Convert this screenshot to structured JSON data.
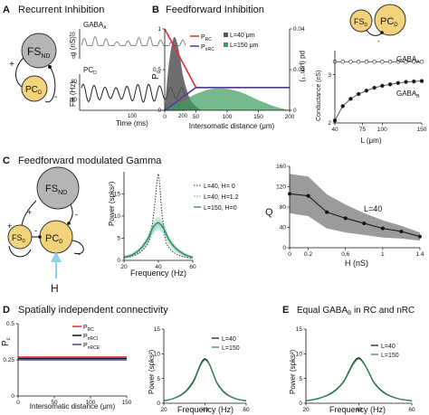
{
  "panel_a": {
    "letter": "A",
    "title": "Recurrent Inhibition",
    "fs_main": "FS",
    "fs_sub": "ND",
    "pc_main": "PC",
    "pc_sub": "D",
    "plus": "+",
    "minus": "-",
    "ylabel_top_prefix": "g (nS)",
    "trace_top_main": "GABA",
    "trace_top_sub": "A",
    "trace_bottom_main": "PC",
    "trace_bottom_sub": "D",
    "ylabel_bottom": "FR (Hz)",
    "y_top_ticks": [
      "20",
      "0"
    ],
    "y_bottom_ticks": [
      "80",
      "40"
    ],
    "x_ticks": [
      "100",
      "200"
    ],
    "xlabel": "Time (ms)"
  },
  "panel_b": {
    "letter": "B",
    "title": "Feedforward Inhibition",
    "fs_main": "FS",
    "fs_sub": "D",
    "pc_main": "PC",
    "pc_sub": "D",
    "ylabel_left": "P",
    "ylabel_left_sub": "c",
    "ylabel_right": "pd (μm⁻¹)",
    "y_left_ticks": [
      "1",
      "0.5",
      "0"
    ],
    "y_right_ticks": [
      "0.04",
      "0.02",
      "0"
    ],
    "x_ticks": [
      "0",
      "50",
      "100",
      "150",
      "200"
    ],
    "xlabel": "Intersomatic distance (μm)",
    "legend_prc": "P",
    "legend_prc_sub": "RC",
    "legend_pnrc": "P",
    "legend_pnrc_sub": "nRC",
    "legend_l40": "L=40 μm",
    "legend_l150": "L=150 μm",
    "colors": {
      "prc": "#e0303a",
      "pnrc": "#4b3fa0",
      "l40": "#555555",
      "l150": "#3c9a5a"
    }
  },
  "panel_b_right": {
    "ylabel": "Conductance (nS)",
    "y_ticks": [
      "3",
      "2"
    ],
    "x_ticks": [
      "40",
      "75",
      "100",
      "150"
    ],
    "xlabel": "L (μm)",
    "gabaa_label": "GABA",
    "gabaa_sub": "A",
    "gabab_label": "GABA",
    "gabab_sub": "B"
  },
  "panel_c": {
    "letter": "C",
    "title": "Feedforward modulated Gamma",
    "fs_nd_main": "FS",
    "fs_nd_sub": "ND",
    "fs_d_main": "FS",
    "fs_d_sub": "D",
    "pc_main": "PC",
    "pc_sub": "D",
    "h_label": "H",
    "ylabel": "Power (spks²)",
    "y_ticks": [
      "15",
      "10",
      "5",
      "0"
    ],
    "x_ticks": [
      "20",
      "40",
      "60"
    ],
    "xlabel": "Frequency (Hz)",
    "legend": [
      "L=40, H= 0",
      "L=40, H=1.2",
      "L=150, H=0"
    ],
    "q_ylabel": "Q",
    "q_y_ticks": [
      "160",
      "120",
      "80",
      "40",
      "0"
    ],
    "q_x_ticks": [
      "0",
      "0.2",
      "0.6",
      "1",
      "1.4"
    ],
    "q_xlabel": "H (nS)",
    "q_annotation": "L=40"
  },
  "panel_d": {
    "letter": "D",
    "title": "Spatially independent connectivity",
    "ylabel": "P",
    "ylabel_sub": "c",
    "y_ticks": [
      "0.5",
      "0.25",
      "0"
    ],
    "x_ticks": [
      "0",
      "50",
      "100",
      "150"
    ],
    "xlabel": "Intersomatic distance (μm)",
    "legend": [
      {
        "main": "P",
        "sub": "RC",
        "color": "#e0303a"
      },
      {
        "main": "P",
        "sub": "nRCI",
        "color": "#111111"
      },
      {
        "main": "P",
        "sub": "nRCE",
        "color": "#4b3fa0"
      }
    ],
    "power_ylabel": "Power (spks²)",
    "power_y_ticks": [
      "15",
      "10",
      "5",
      "0"
    ],
    "power_x_ticks": [
      "20",
      "40",
      "60"
    ],
    "power_xlabel": "Frequency (Hz)",
    "power_legend": [
      "L=40",
      "L=150"
    ]
  },
  "panel_e": {
    "letter": "E",
    "title_main": "Equal GABA",
    "title_sub": "B",
    "title_tail": " in RC and nRC",
    "ylabel": "Power (spks²)",
    "y_ticks": [
      "15",
      "10",
      "5",
      "0"
    ],
    "x_ticks": [
      "20",
      "40",
      "60"
    ],
    "xlabel": "Frequency (Hz)",
    "legend": [
      "L=40",
      "L=150"
    ]
  },
  "chart_data": [
    {
      "id": "pc_vs_distance",
      "type": "line",
      "xlabel": "Intersomatic distance (μm)",
      "ylabel": "Pc",
      "xlim": [
        0,
        200
      ],
      "ylim": [
        0,
        1
      ],
      "series": [
        {
          "name": "PRC",
          "x": [
            0,
            50,
            200
          ],
          "y": [
            1.0,
            0.28,
            0.28
          ]
        },
        {
          "name": "PnRC",
          "x": [
            0,
            50,
            200
          ],
          "y": [
            0.0,
            0.28,
            0.28
          ]
        }
      ],
      "density": [
        {
          "name": "L=40 μm",
          "x": [
            0,
            5,
            10,
            15,
            20,
            25,
            30,
            40,
            50,
            60
          ],
          "y": [
            0.0,
            0.018,
            0.03,
            0.036,
            0.033,
            0.025,
            0.016,
            0.006,
            0.002,
            0.0
          ]
        },
        {
          "name": "L=150 μm",
          "x": [
            0,
            25,
            50,
            75,
            100,
            125,
            150,
            175,
            200
          ],
          "y": [
            0.0,
            0.004,
            0.008,
            0.0105,
            0.0105,
            0.0085,
            0.005,
            0.002,
            0.0
          ]
        }
      ]
    },
    {
      "id": "conductance_vs_L",
      "type": "line",
      "xlabel": "L (μm)",
      "ylabel": "Conductance (nS)",
      "xlim": [
        40,
        150
      ],
      "ylim": [
        2,
        3.5
      ],
      "series": [
        {
          "name": "GABAA",
          "x": [
            40,
            50,
            60,
            70,
            80,
            90,
            100,
            110,
            120,
            130,
            140,
            150
          ],
          "y": [
            3.27,
            3.27,
            3.27,
            3.27,
            3.27,
            3.27,
            3.27,
            3.27,
            3.27,
            3.27,
            3.27,
            3.27
          ]
        },
        {
          "name": "GABAB",
          "x": [
            40,
            50,
            60,
            70,
            80,
            90,
            100,
            110,
            120,
            130,
            140,
            150
          ],
          "y": [
            2.05,
            2.35,
            2.5,
            2.6,
            2.67,
            2.73,
            2.77,
            2.8,
            2.83,
            2.85,
            2.86,
            2.87
          ]
        }
      ]
    },
    {
      "id": "power_ffi",
      "type": "line",
      "xlabel": "Frequency (Hz)",
      "ylabel": "Power (spks²)",
      "xlim": [
        20,
        60
      ],
      "ylim": [
        0,
        20
      ],
      "series": [
        {
          "name": "L=40, H= 0",
          "x": [
            20,
            25,
            30,
            34,
            36,
            38,
            39,
            40,
            41,
            42,
            44,
            46,
            50,
            55,
            60
          ],
          "y": [
            0.6,
            1.0,
            2.0,
            4.0,
            7.0,
            13.0,
            17.0,
            19.5,
            16.0,
            11.0,
            5.0,
            3.0,
            1.5,
            0.8,
            0.5
          ]
        },
        {
          "name": "L=40, H=1.2",
          "x": [
            20,
            25,
            30,
            34,
            36,
            38,
            40,
            42,
            44,
            46,
            50,
            55,
            60
          ],
          "y": [
            0.6,
            1.2,
            2.5,
            4.5,
            6.0,
            7.5,
            8.0,
            7.5,
            6.2,
            4.5,
            2.5,
            1.2,
            0.6
          ]
        },
        {
          "name": "L=150, H=0",
          "x": [
            20,
            25,
            30,
            34,
            36,
            38,
            40,
            42,
            44,
            46,
            50,
            55,
            60
          ],
          "y": [
            0.7,
            1.3,
            2.8,
            5.0,
            6.8,
            8.0,
            8.5,
            7.8,
            6.5,
            4.8,
            2.8,
            1.4,
            0.7
          ]
        }
      ]
    },
    {
      "id": "q_vs_h",
      "type": "line",
      "xlabel": "H (nS)",
      "ylabel": "Q",
      "xlim": [
        0,
        1.4
      ],
      "ylim": [
        0,
        160
      ],
      "series": [
        {
          "name": "Q",
          "x": [
            0,
            0.2,
            0.4,
            0.6,
            0.8,
            1.0,
            1.2,
            1.4
          ],
          "y": [
            106,
            102,
            70,
            58,
            48,
            38,
            32,
            22
          ]
        },
        {
          "name": "upper",
          "x": [
            0,
            0.2,
            0.4,
            0.6,
            0.8,
            1.0,
            1.2,
            1.4
          ],
          "y": [
            145,
            140,
            105,
            85,
            68,
            54,
            43,
            30
          ]
        },
        {
          "name": "lower",
          "x": [
            0,
            0.2,
            0.4,
            0.6,
            0.8,
            1.0,
            1.2,
            1.4
          ],
          "y": [
            68,
            62,
            38,
            30,
            25,
            20,
            18,
            14
          ]
        }
      ]
    },
    {
      "id": "pc_flat",
      "type": "line",
      "xlabel": "Intersomatic distance (μm)",
      "ylabel": "Pc",
      "xlim": [
        0,
        150
      ],
      "ylim": [
        0,
        0.5
      ],
      "series": [
        {
          "name": "PRC",
          "x": [
            0,
            150
          ],
          "y": [
            0.27,
            0.27
          ]
        },
        {
          "name": "PnRCI",
          "x": [
            0,
            150
          ],
          "y": [
            0.26,
            0.26
          ]
        },
        {
          "name": "PnRCE",
          "x": [
            0,
            150
          ],
          "y": [
            0.25,
            0.25
          ]
        }
      ]
    },
    {
      "id": "power_indep",
      "type": "line",
      "xlabel": "Frequency (Hz)",
      "ylabel": "Power (spks²)",
      "xlim": [
        20,
        60
      ],
      "ylim": [
        0,
        15
      ],
      "series": [
        {
          "name": "L=40",
          "x": [
            20,
            25,
            30,
            34,
            36,
            38,
            40,
            42,
            44,
            46,
            50,
            55,
            60
          ],
          "y": [
            0.5,
            1.0,
            2.2,
            4.2,
            6.0,
            8.0,
            9.0,
            8.0,
            6.0,
            4.0,
            2.0,
            0.9,
            0.5
          ]
        },
        {
          "name": "L=150",
          "x": [
            20,
            25,
            30,
            34,
            36,
            38,
            40,
            42,
            44,
            46,
            50,
            55,
            60
          ],
          "y": [
            0.5,
            1.0,
            2.1,
            4.0,
            5.8,
            7.8,
            8.8,
            7.9,
            5.9,
            3.9,
            1.9,
            0.9,
            0.5
          ]
        }
      ]
    },
    {
      "id": "power_equal_gabab",
      "type": "line",
      "xlabel": "Frequency (Hz)",
      "ylabel": "Power (spks²)",
      "xlim": [
        20,
        60
      ],
      "ylim": [
        0,
        15
      ],
      "series": [
        {
          "name": "L=40",
          "x": [
            20,
            25,
            30,
            34,
            36,
            38,
            40,
            42,
            44,
            46,
            50,
            55,
            60
          ],
          "y": [
            0.5,
            1.0,
            2.2,
            4.2,
            6.2,
            8.2,
            9.2,
            8.0,
            6.0,
            4.0,
            2.0,
            0.9,
            0.5
          ]
        },
        {
          "name": "L=150",
          "x": [
            20,
            25,
            30,
            34,
            36,
            38,
            40,
            42,
            44,
            46,
            50,
            55,
            60
          ],
          "y": [
            0.5,
            1.0,
            2.1,
            4.1,
            6.0,
            8.0,
            9.0,
            7.9,
            5.9,
            3.9,
            1.9,
            0.9,
            0.5
          ]
        }
      ]
    }
  ]
}
